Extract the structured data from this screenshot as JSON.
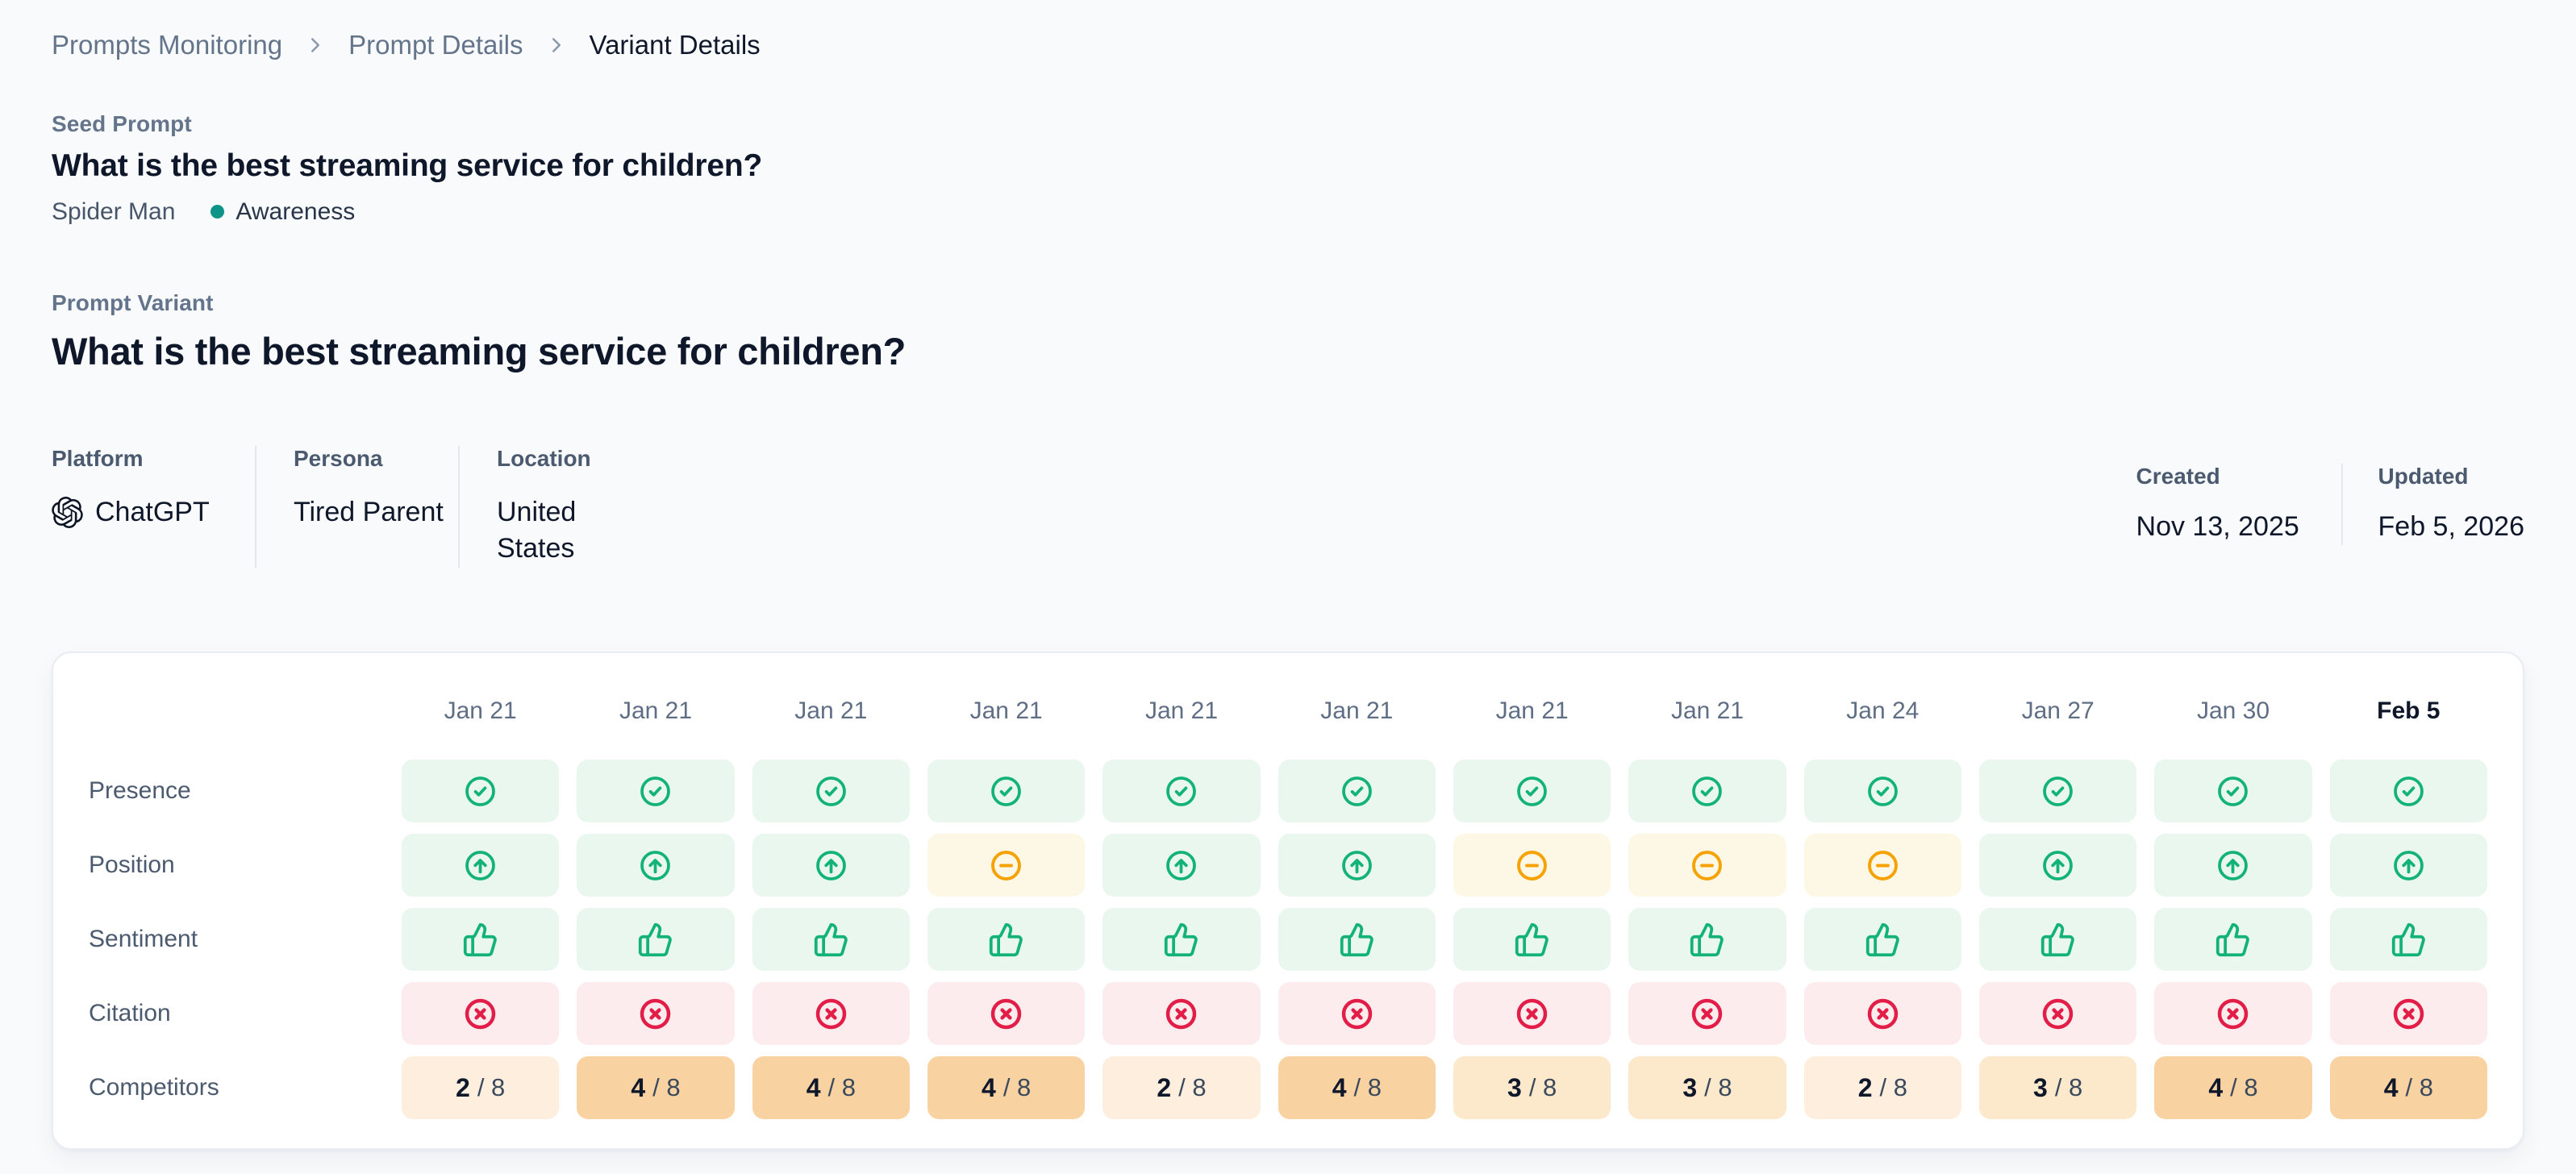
{
  "breadcrumb": {
    "items": [
      {
        "label": "Prompts Monitoring"
      },
      {
        "label": "Prompt Details"
      },
      {
        "label": "Variant Details"
      }
    ]
  },
  "seed_prompt": {
    "label": "Seed Prompt",
    "title": "What is the best streaming service for children?",
    "owner": "Spider Man",
    "category": "Awareness",
    "category_color": "#0d9488"
  },
  "prompt_variant": {
    "label": "Prompt Variant",
    "title": "What is the best streaming service for children?"
  },
  "meta": {
    "platform": {
      "label": "Platform",
      "value": "ChatGPT",
      "icon": "openai-logo-icon"
    },
    "persona": {
      "label": "Persona",
      "value": "Tired Parent"
    },
    "location": {
      "label": "Location",
      "value": "United States"
    },
    "created": {
      "label": "Created",
      "value": "Nov 13, 2025"
    },
    "updated": {
      "label": "Updated",
      "value": "Feb 5, 2026"
    }
  },
  "matrix": {
    "dates": [
      "Jan 21",
      "Jan 21",
      "Jan 21",
      "Jan 21",
      "Jan 21",
      "Jan 21",
      "Jan 21",
      "Jan 21",
      "Jan 24",
      "Jan 27",
      "Jan 30",
      "Feb 5"
    ],
    "latest_column_highlighted": true,
    "rows": [
      {
        "label": "Presence",
        "type": "icon",
        "values": [
          "check",
          "check",
          "check",
          "check",
          "check",
          "check",
          "check",
          "check",
          "check",
          "check",
          "check",
          "check"
        ]
      },
      {
        "label": "Position",
        "type": "icon",
        "values": [
          "up",
          "up",
          "up",
          "dash",
          "up",
          "up",
          "dash",
          "dash",
          "dash",
          "up",
          "up",
          "up"
        ]
      },
      {
        "label": "Sentiment",
        "type": "icon",
        "values": [
          "thumbs-up",
          "thumbs-up",
          "thumbs-up",
          "thumbs-up",
          "thumbs-up",
          "thumbs-up",
          "thumbs-up",
          "thumbs-up",
          "thumbs-up",
          "thumbs-up",
          "thumbs-up",
          "thumbs-up"
        ]
      },
      {
        "label": "Citation",
        "type": "icon",
        "values": [
          "x",
          "x",
          "x",
          "x",
          "x",
          "x",
          "x",
          "x",
          "x",
          "x",
          "x",
          "x"
        ]
      },
      {
        "label": "Competitors",
        "type": "fraction",
        "denominator": 8,
        "values": [
          2,
          4,
          4,
          4,
          2,
          4,
          3,
          3,
          2,
          3,
          4,
          4
        ]
      }
    ],
    "styles": {
      "check": {
        "fg": "#13b377",
        "bg": "#e9f7ef"
      },
      "up": {
        "fg": "#13b377",
        "bg": "#e9f7ef"
      },
      "thumbs-up": {
        "fg": "#13b377",
        "bg": "#e9f7ef"
      },
      "dash": {
        "fg": "#f6a204",
        "bg": "#fdf8e5"
      },
      "x": {
        "fg": "#e11d48",
        "bg": "#fdeced"
      },
      "fraction_bg": {
        "2": "#fdeedd",
        "3": "#fce8cb",
        "4": "#f9d2a2"
      }
    }
  }
}
